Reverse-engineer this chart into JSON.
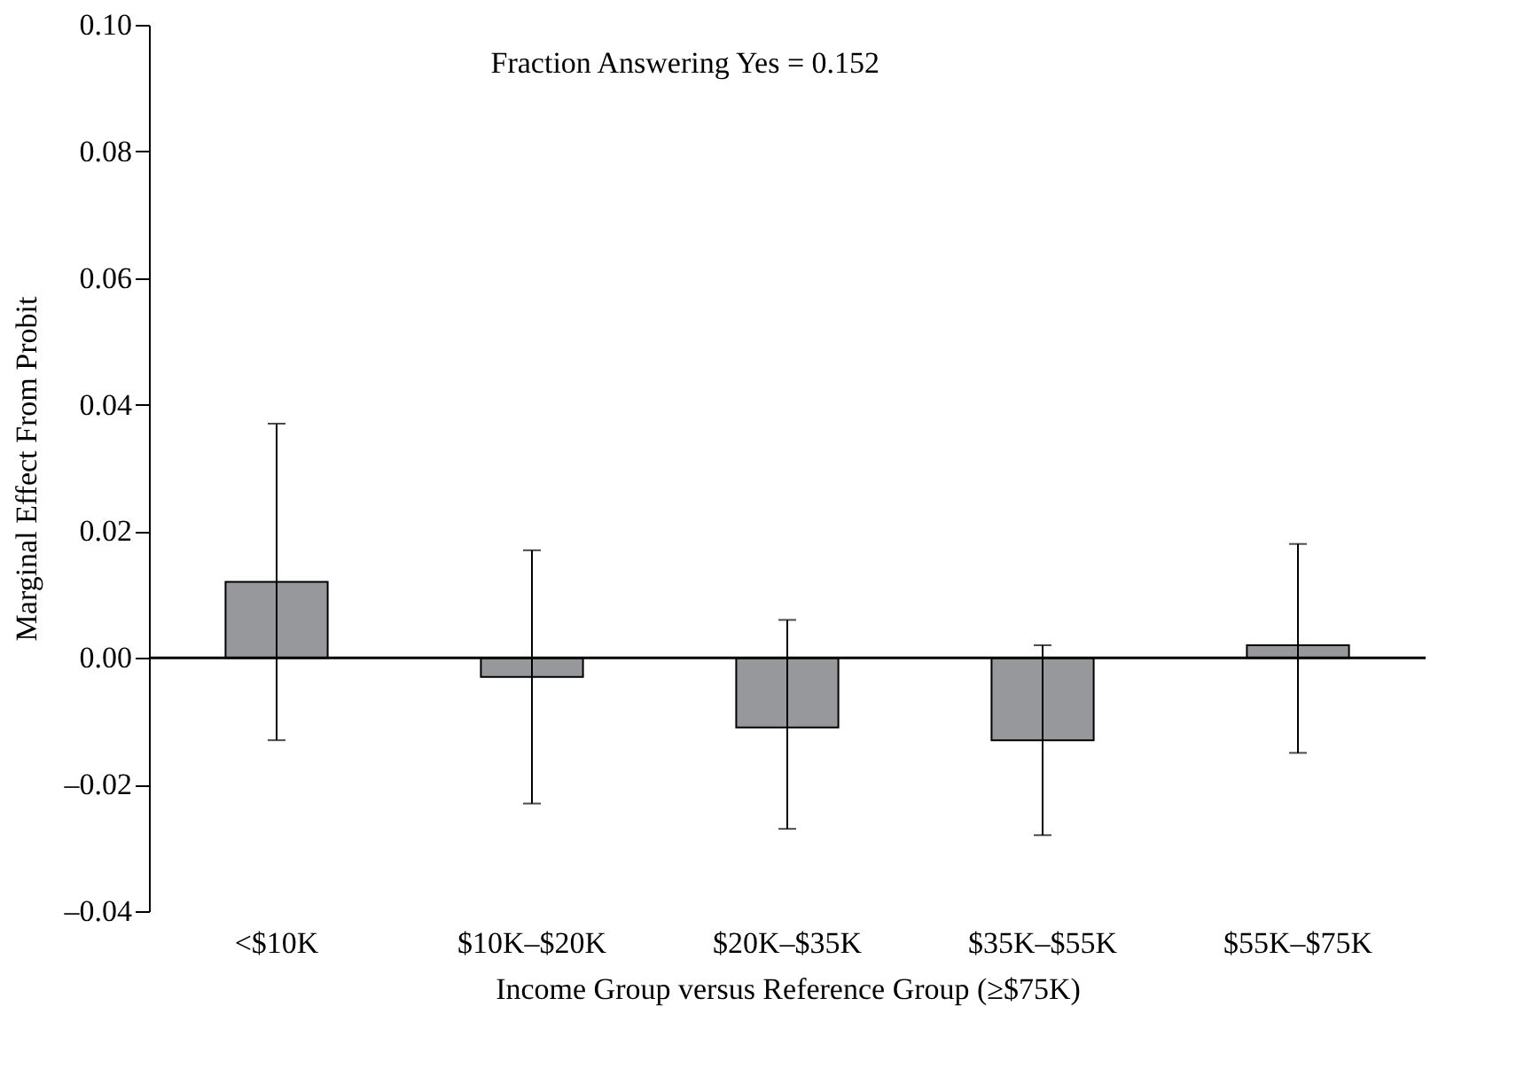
{
  "chart_data": {
    "type": "bar",
    "xlabel": "Income Group versus Reference Group (≥$75K)",
    "ylabel": "Marginal Effect From Probit",
    "annotations": [
      "Fraction Answering Yes = 0.152"
    ],
    "categories": [
      "<$10K",
      "$10K–$20K",
      "$20K–$35K",
      "$35K–$55K",
      "$55K–$75K"
    ],
    "values": [
      0.012,
      -0.003,
      -0.011,
      -0.013,
      0.002
    ],
    "errors": [
      [
        -0.013,
        0.037
      ],
      [
        -0.023,
        0.017
      ],
      [
        -0.027,
        0.006
      ],
      [
        -0.028,
        0.002
      ],
      [
        -0.015,
        0.018
      ]
    ],
    "color": "#97989b",
    "ylim": [
      -0.04,
      0.1
    ],
    "yticks": [
      {
        "value": -0.04,
        "label": "–0.04"
      },
      {
        "value": -0.02,
        "label": "–0.02"
      },
      {
        "value": 0,
        "label": "0.00"
      },
      {
        "value": 0.02,
        "label": "0.02"
      },
      {
        "value": 0.04,
        "label": "0.04"
      },
      {
        "value": 0.06,
        "label": "0.06"
      },
      {
        "value": 0.08,
        "label": "0.08"
      },
      {
        "value": 0.1,
        "label": "0.10"
      }
    ],
    "ref_lines": [
      {
        "axis": "y",
        "value": 0,
        "color": "#000000"
      }
    ],
    "grid": false
  }
}
